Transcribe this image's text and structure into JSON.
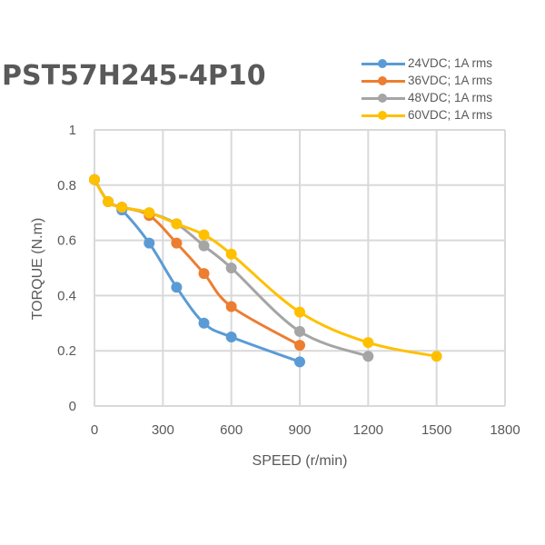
{
  "chart_data": {
    "type": "line",
    "title": "PST57H245-4P10",
    "xlabel": "SPEED (r/min)",
    "ylabel": "TORQUE (N.m)",
    "xlim": [
      0,
      1800
    ],
    "ylim": [
      0,
      1
    ],
    "xticks": [
      "0",
      "300",
      "600",
      "900",
      "1200",
      "1500",
      "1800"
    ],
    "yticks": [
      "0",
      "0.2",
      "0.4",
      "0.6",
      "0.8",
      "1"
    ],
    "grid": true,
    "legend_position": "top-right",
    "series": [
      {
        "name": "24VDC; 1A rms",
        "color": "#5B9BD5",
        "x": [
          0,
          60,
          120,
          240,
          360,
          480,
          600,
          900
        ],
        "y": [
          0.82,
          0.74,
          0.71,
          0.59,
          0.43,
          0.3,
          0.25,
          0.16
        ]
      },
      {
        "name": "36VDC; 1A rms",
        "color": "#ED7D31",
        "x": [
          0,
          60,
          120,
          240,
          360,
          480,
          600,
          900
        ],
        "y": [
          0.82,
          0.74,
          0.72,
          0.69,
          0.59,
          0.48,
          0.36,
          0.22
        ]
      },
      {
        "name": "48VDC; 1A rms",
        "color": "#A5A5A5",
        "x": [
          0,
          60,
          120,
          240,
          360,
          480,
          600,
          900,
          1200
        ],
        "y": [
          0.82,
          0.74,
          0.72,
          0.7,
          0.66,
          0.58,
          0.5,
          0.27,
          0.18
        ]
      },
      {
        "name": "60VDC; 1A rms",
        "color": "#FFC000",
        "x": [
          0,
          60,
          120,
          240,
          360,
          480,
          600,
          900,
          1200,
          1500
        ],
        "y": [
          0.82,
          0.74,
          0.72,
          0.7,
          0.66,
          0.62,
          0.55,
          0.34,
          0.23,
          0.18
        ]
      }
    ]
  }
}
